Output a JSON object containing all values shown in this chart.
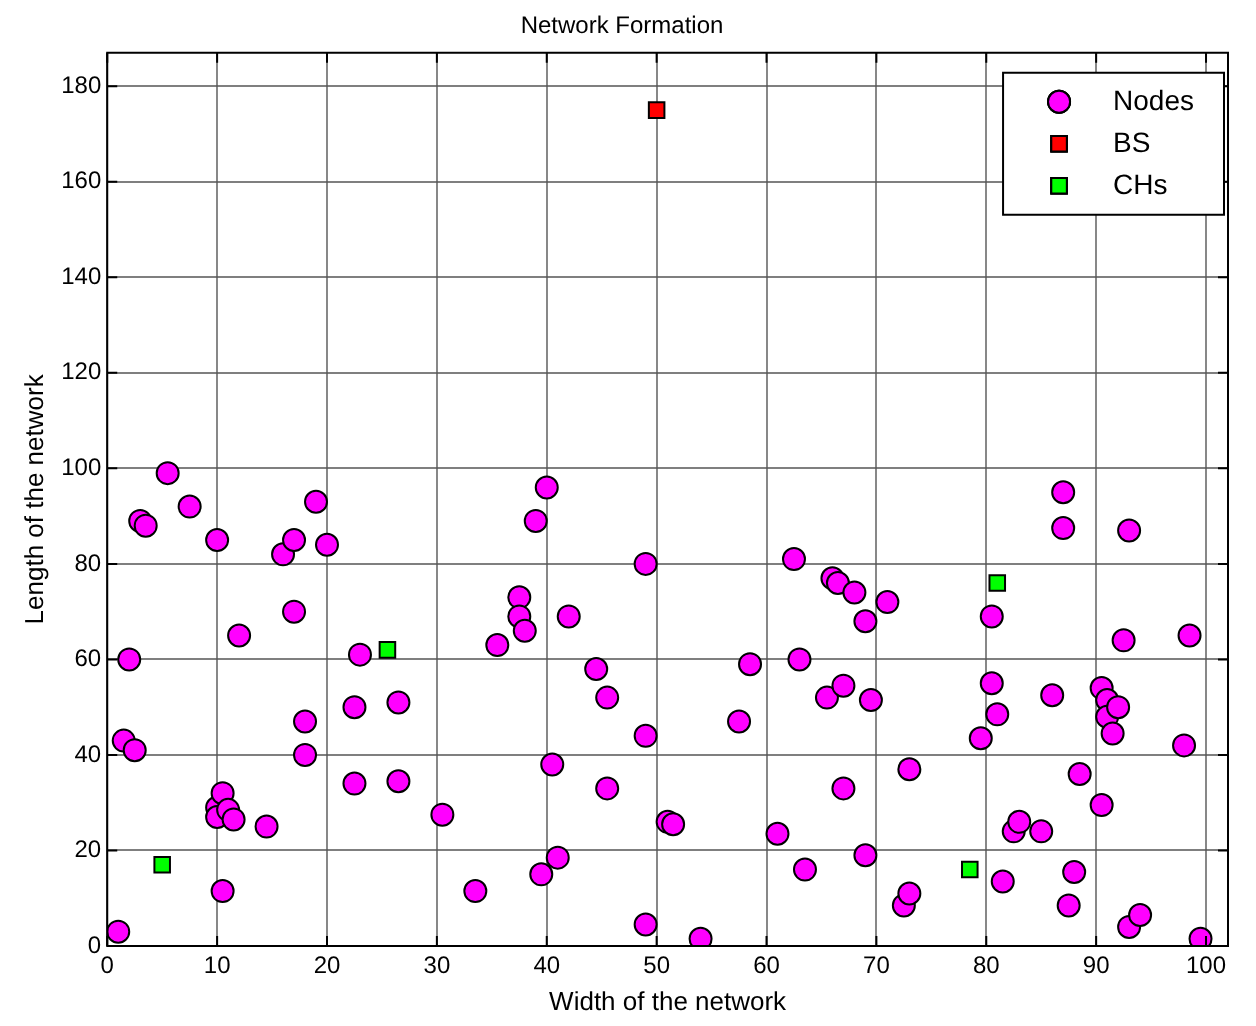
{
  "chart_data": {
    "type": "scatter",
    "title": "Network Formation",
    "xlabel": "Width of the network",
    "ylabel": "Length of the network",
    "xlim": [
      0,
      102
    ],
    "ylim": [
      0,
      187
    ],
    "xticks": [
      0,
      10,
      20,
      30,
      40,
      50,
      60,
      70,
      80,
      90,
      100
    ],
    "yticks": [
      0,
      20,
      40,
      60,
      80,
      100,
      120,
      140,
      160,
      180
    ],
    "grid": true,
    "legend": "top right",
    "series": [
      {
        "name": "Nodes",
        "color": "#ff00ff",
        "marker": "circle",
        "x": [
          1,
          2,
          1.5,
          2.5,
          3,
          3.5,
          5.5,
          7.5,
          10,
          10,
          10,
          10.5,
          11,
          11.5,
          10.5,
          12,
          14.5,
          16,
          17,
          17,
          18,
          18,
          19,
          20,
          22.5,
          22.5,
          23,
          26.5,
          26.5,
          30.5,
          33.5,
          35.5,
          37.5,
          37.5,
          38,
          39,
          39.5,
          40,
          40.5,
          41,
          42,
          44.5,
          45.5,
          45.5,
          49,
          49,
          49,
          51,
          51.5,
          54,
          57.5,
          58.5,
          61,
          62.5,
          63,
          63.5,
          65.5,
          66,
          66.5,
          67,
          67,
          68,
          69,
          69,
          69.5,
          71,
          72.5,
          73,
          73,
          79.5,
          80.5,
          80.5,
          81,
          81.5,
          82.5,
          83,
          85,
          86,
          87,
          87,
          87.5,
          88,
          88.5,
          90.5,
          90.5,
          91,
          91,
          92,
          91.5,
          92.5,
          93,
          93,
          94,
          98,
          98.5,
          99.5
        ],
        "values": [
          3,
          60,
          43,
          41,
          89,
          88,
          99,
          92,
          85,
          29,
          27,
          32,
          28.5,
          26.5,
          11.5,
          65,
          25,
          82,
          85,
          70,
          47,
          40,
          93,
          84,
          34,
          50,
          61,
          34.5,
          51,
          27.5,
          11.5,
          63,
          73,
          69,
          66,
          89,
          15,
          96,
          38,
          18.5,
          69,
          58,
          52,
          33,
          80,
          44,
          4.5,
          26,
          25.5,
          1.5,
          47,
          59,
          23.5,
          81,
          60,
          16,
          52,
          77,
          76,
          33,
          54.5,
          74,
          19,
          68,
          51.5,
          72,
          8.5,
          11,
          37,
          43.5,
          69,
          55,
          48.5,
          13.5,
          24,
          26,
          24,
          52.5,
          95,
          87.5,
          8.5,
          15.5,
          36,
          54,
          29.5,
          51.5,
          48,
          50,
          44.5,
          64,
          87,
          4,
          6.5,
          42,
          65,
          1.5
        ]
      },
      {
        "name": "BS",
        "color": "#ff0000",
        "marker": "square",
        "x": [
          50
        ],
        "values": [
          175
        ]
      },
      {
        "name": "CHs",
        "color": "#00ff00",
        "marker": "square",
        "x": [
          5,
          25.5,
          81,
          78.5
        ],
        "values": [
          17,
          62,
          76,
          16
        ]
      }
    ]
  }
}
